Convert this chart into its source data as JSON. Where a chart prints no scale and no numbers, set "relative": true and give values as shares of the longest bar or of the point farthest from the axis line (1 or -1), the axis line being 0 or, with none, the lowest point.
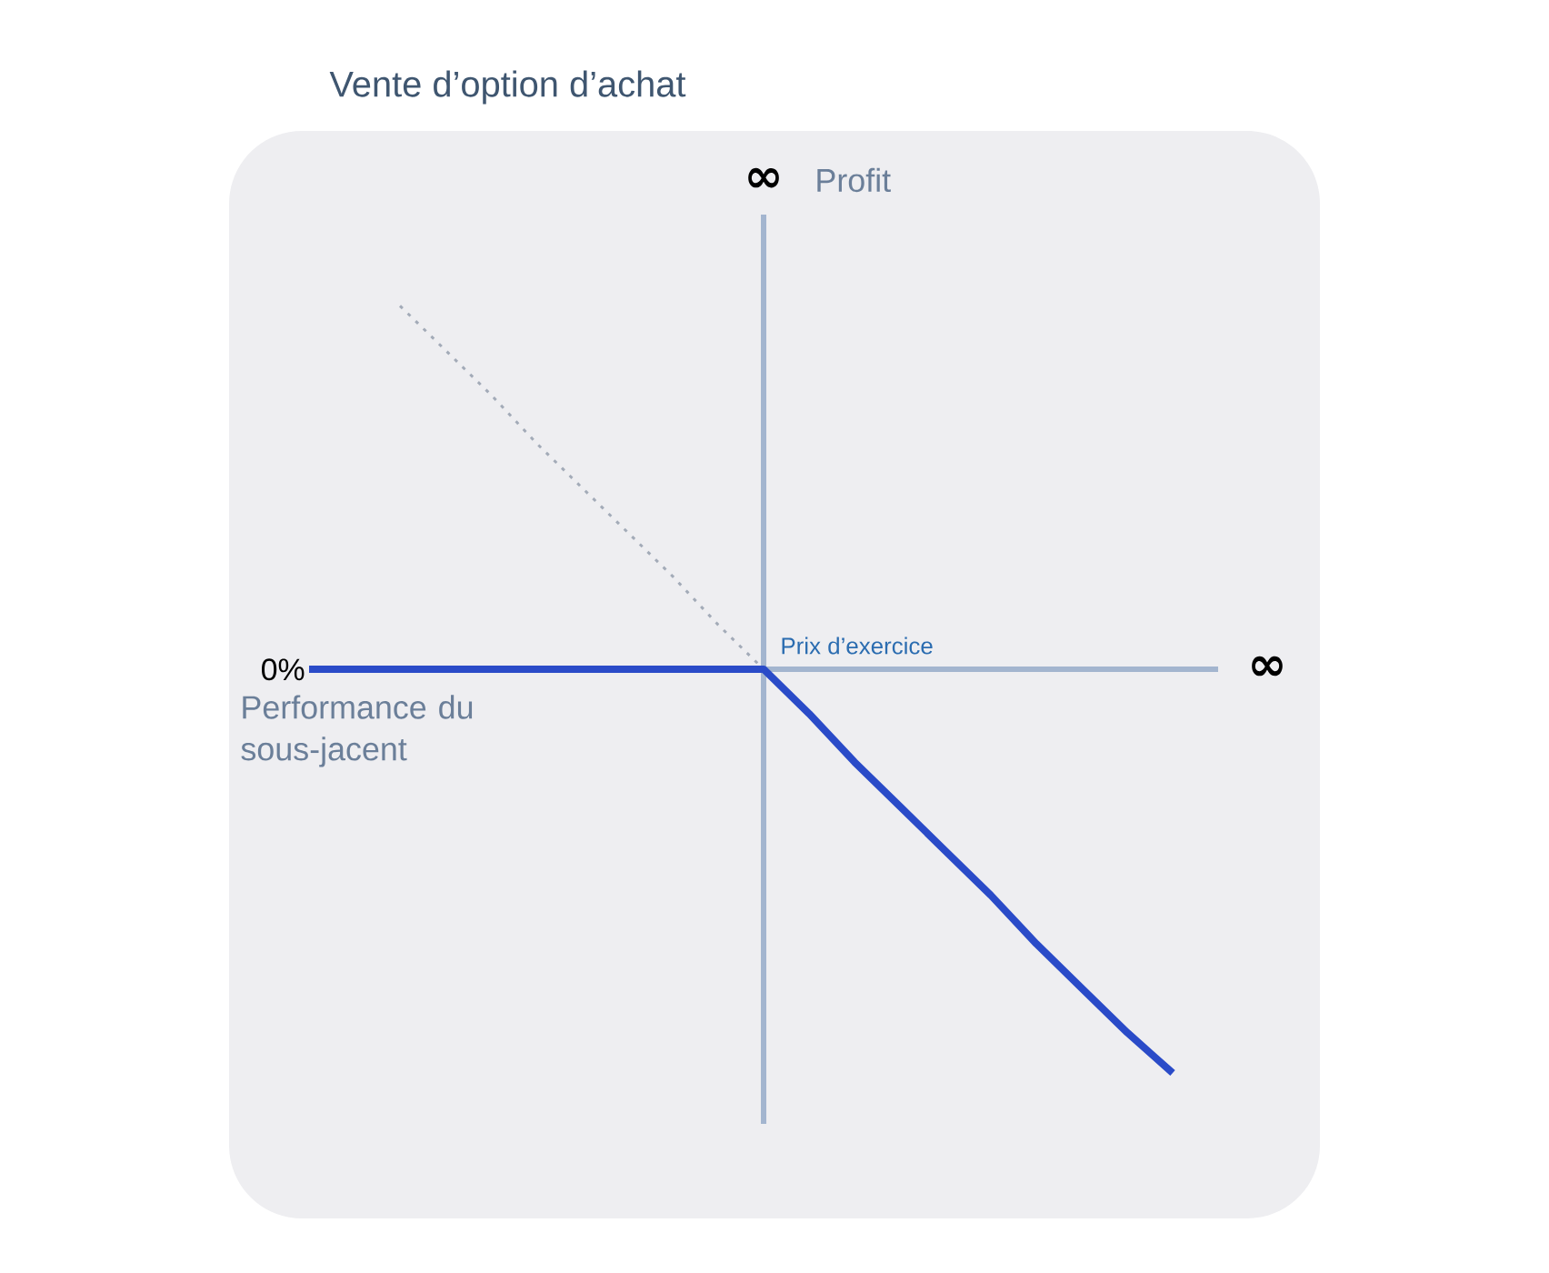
{
  "chart_data": {
    "type": "line",
    "title": "Vente d’option d’achat",
    "xlabel": "Performance du sous-jacent",
    "ylabel": "Profit",
    "relative": true,
    "ref_lines": [
      {
        "axis": "y",
        "value": 0,
        "color": "#a3b5cf"
      }
    ],
    "categories": [
      null,
      null,
      null,
      null,
      null,
      null,
      null,
      null,
      null,
      null,
      null,
      null,
      null,
      null,
      null,
      null,
      null,
      null,
      null,
      null,
      null
    ],
    "annotations": [
      "∞",
      "Prix d’exercice",
      "0%",
      "∞"
    ],
    "series": [
      {
        "color": "#a3abb8",
        "line_style": "dotted",
        "values": [
          null,
          null,
          0.9,
          0.79,
          0.68,
          0.56,
          0.45,
          0.34,
          0.23,
          0.11,
          0,
          null,
          null,
          null,
          null,
          null,
          null,
          null,
          null,
          null,
          null
        ]
      },
      {
        "color": "#2a4bc8",
        "line_style": "solid",
        "values": [
          0,
          0,
          0,
          0,
          0,
          0,
          0,
          0,
          0,
          0,
          0,
          -0.11,
          -0.23,
          -0.34,
          -0.45,
          -0.56,
          -0.68,
          -0.79,
          -0.9,
          -1.0,
          null
        ]
      }
    ]
  }
}
